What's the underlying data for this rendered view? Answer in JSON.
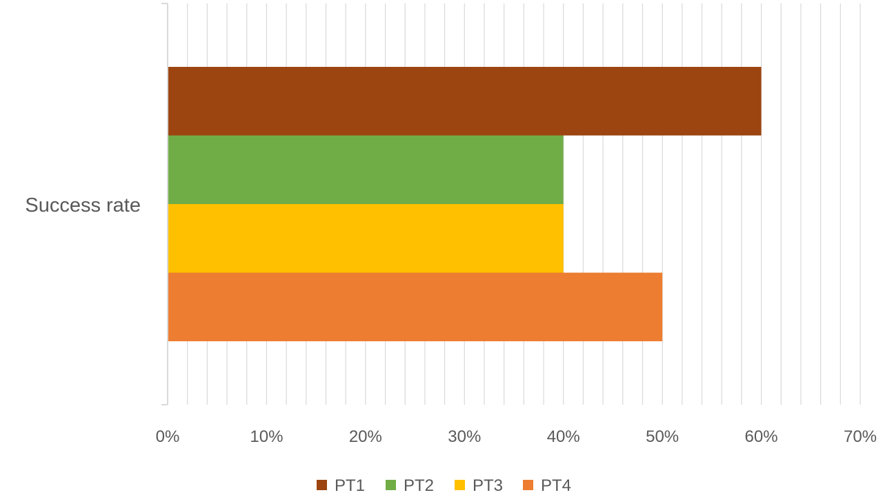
{
  "chart_data": {
    "type": "bar",
    "orientation": "horizontal",
    "categories": [
      "Success rate"
    ],
    "series": [
      {
        "name": "PT1",
        "values": [
          0.6
        ],
        "color": "#9C4510"
      },
      {
        "name": "PT2",
        "values": [
          0.4
        ],
        "color": "#70AD47"
      },
      {
        "name": "PT3",
        "values": [
          0.4
        ],
        "color": "#FFC000"
      },
      {
        "name": "PT4",
        "values": [
          0.5
        ],
        "color": "#ED7D31"
      }
    ],
    "title": "",
    "xlabel": "",
    "ylabel": "",
    "xlim": [
      0,
      0.7
    ],
    "x_ticks": [
      "0%",
      "10%",
      "20%",
      "30%",
      "40%",
      "50%",
      "60%",
      "70%"
    ],
    "x_tick_values": [
      0,
      0.1,
      0.2,
      0.3,
      0.4,
      0.5,
      0.6,
      0.7
    ],
    "x_minor_step": 0.02,
    "grid": true,
    "legend_position": "bottom"
  }
}
